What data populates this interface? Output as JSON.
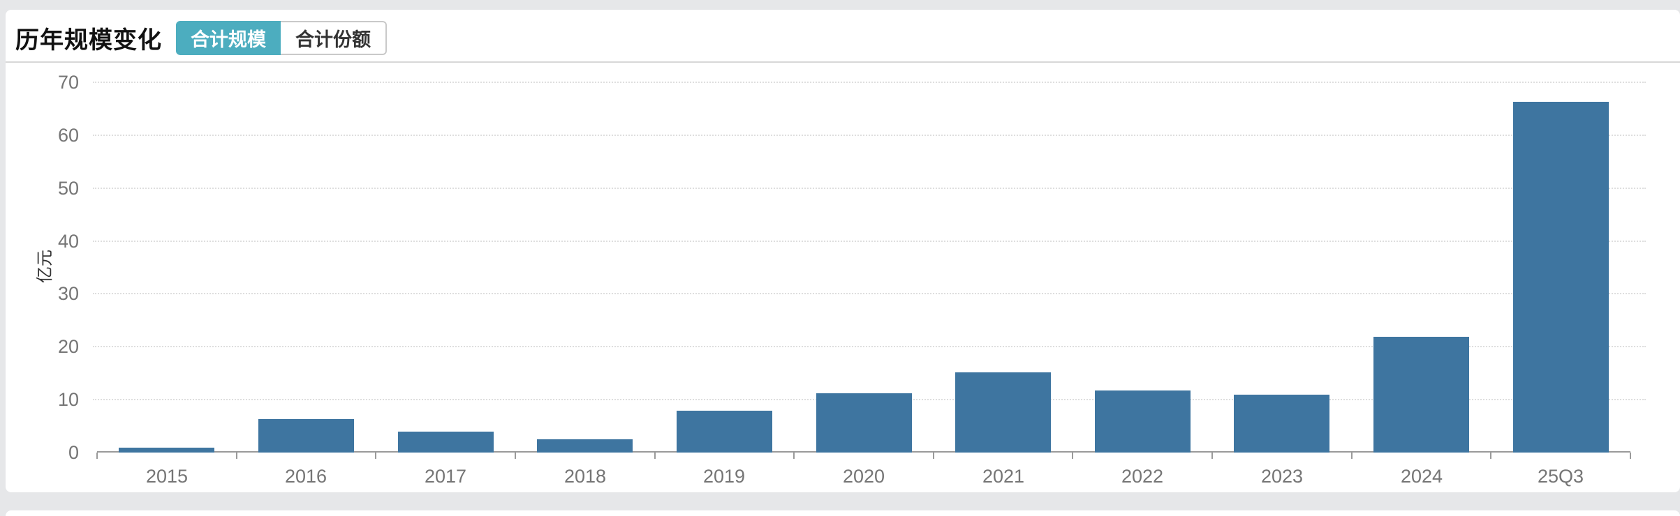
{
  "header": {
    "title": "历年规模变化",
    "tabs": [
      {
        "label": "合计规模",
        "active": true
      },
      {
        "label": "合计份额",
        "active": false
      }
    ]
  },
  "colors": {
    "page_background": "#e6e7e9",
    "card_background": "#ffffff",
    "active_tab": "#4cadbf",
    "bar": "#3e75a0",
    "axis": "#9a9a9a",
    "gridline": "#dedede",
    "tick_label": "#757575"
  },
  "chart_data": {
    "type": "bar",
    "title": "历年规模变化",
    "categories": [
      "2015",
      "2016",
      "2017",
      "2018",
      "2019",
      "2020",
      "2021",
      "2022",
      "2023",
      "2024",
      "25Q3"
    ],
    "values": [
      0.9,
      6.3,
      3.9,
      2.5,
      7.9,
      11.2,
      15.2,
      11.7,
      10.9,
      21.9,
      66.3
    ],
    "xlabel": "",
    "ylabel": "亿元",
    "ylim": [
      0,
      70
    ],
    "yticks": [
      0,
      10,
      20,
      30,
      40,
      50,
      60,
      70
    ],
    "grid": "horizontal-dotted",
    "legend_position": "none",
    "bar_color": "#3e75a0"
  }
}
